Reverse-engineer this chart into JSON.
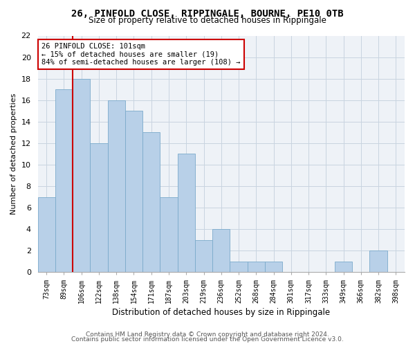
{
  "title1": "26, PINFOLD CLOSE, RIPPINGALE, BOURNE, PE10 0TB",
  "title2": "Size of property relative to detached houses in Rippingale",
  "xlabel": "Distribution of detached houses by size in Rippingale",
  "ylabel": "Number of detached properties",
  "categories": [
    "73sqm",
    "89sqm",
    "106sqm",
    "122sqm",
    "138sqm",
    "154sqm",
    "171sqm",
    "187sqm",
    "203sqm",
    "219sqm",
    "236sqm",
    "252sqm",
    "268sqm",
    "284sqm",
    "301sqm",
    "317sqm",
    "333sqm",
    "349sqm",
    "366sqm",
    "382sqm",
    "398sqm"
  ],
  "values": [
    7,
    17,
    18,
    12,
    16,
    15,
    13,
    7,
    11,
    3,
    4,
    1,
    1,
    1,
    0,
    0,
    0,
    1,
    0,
    2,
    0
  ],
  "bar_color": "#b8d0e8",
  "bar_edge_color": "#7aaacb",
  "vline_x": 1.5,
  "vline_color": "#cc0000",
  "annotation_line1": "26 PINFOLD CLOSE: 101sqm",
  "annotation_line2": "← 15% of detached houses are smaller (19)",
  "annotation_line3": "84% of semi-detached houses are larger (108) →",
  "annotation_box_color": "#ffffff",
  "annotation_box_edge": "#cc0000",
  "ylim": [
    0,
    22
  ],
  "yticks": [
    0,
    2,
    4,
    6,
    8,
    10,
    12,
    14,
    16,
    18,
    20,
    22
  ],
  "footer1": "Contains HM Land Registry data © Crown copyright and database right 2024.",
  "footer2": "Contains public sector information licensed under the Open Government Licence v3.0.",
  "bg_color": "#eef2f7",
  "grid_color": "#c8d4e0"
}
